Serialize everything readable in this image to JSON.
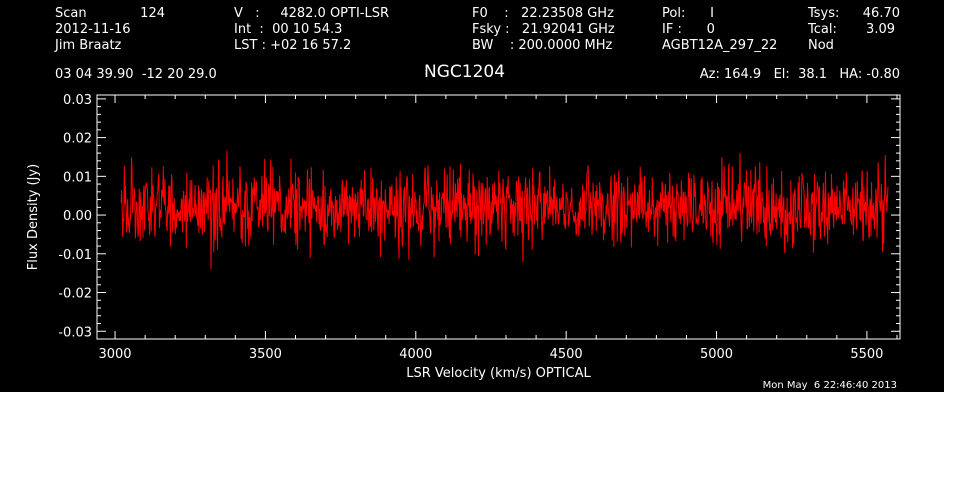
{
  "header": {
    "col1": {
      "scan_label": "Scan",
      "scan_value": "124",
      "date": "2012-11-16",
      "observer": "Jim Braatz"
    },
    "col2": {
      "v_line": "V   :     4282.0 OPTI-LSR",
      "int_line": "Int  :  00 10 54.3",
      "lst_line": "LST : +02 16 57.2"
    },
    "col3": {
      "f0_line": "F0    :   22.23508 GHz",
      "fsky_line": "Fsky :   21.92041 GHz",
      "bw_line": "BW    : 200.0000 MHz"
    },
    "col4": {
      "pol_line": "Pol:      I",
      "if_line": "IF :      0",
      "project": "AGBT12A_297_22"
    },
    "col5": {
      "tsys_label": "Tsys:",
      "tsys_value": "46.70",
      "tcal_label": "Tcal:",
      "tcal_value": "3.09",
      "mode": "Nod"
    },
    "coords": "03 04 39.90  -12 20 29.0",
    "az_el_ha": "Az: 164.9   El:  38.1   HA: -0.80",
    "timestamp": "Mon May  6 22:46:40 2013"
  },
  "colors": {
    "background": "#000000",
    "axes": "#ffffff",
    "trace": "#ff0000"
  },
  "chart_data": {
    "type": "line",
    "title": "NGC1204",
    "xlabel": "LSR Velocity (km/s) OPTICAL",
    "ylabel": "Flux Density (Jy)",
    "xlim": [
      2940,
      5610
    ],
    "ylim": [
      -0.032,
      0.031
    ],
    "x_ticks": [
      "3000",
      "3500",
      "4000",
      "4500",
      "5000",
      "5500"
    ],
    "y_ticks": [
      "0.03",
      "0.02",
      "0.01",
      "0.00",
      "-0.01",
      "-0.02",
      "-0.03"
    ],
    "series": [
      {
        "x_range": [
          3020,
          5570
        ],
        "points": 1400,
        "mean": 0.002,
        "rms": 0.005,
        "approx_min": -0.021,
        "approx_max": 0.021
      }
    ]
  }
}
